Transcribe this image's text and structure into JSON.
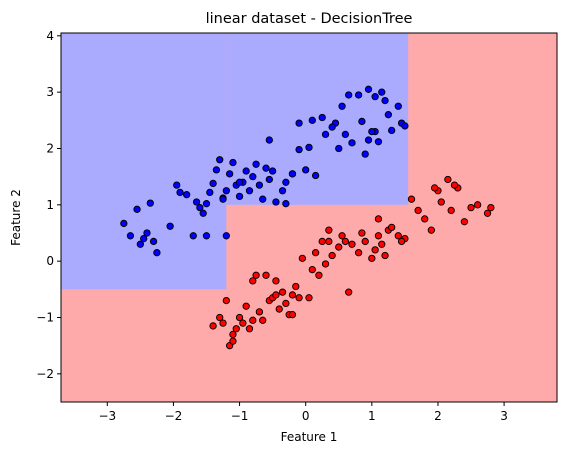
{
  "chart_data": {
    "type": "scatter",
    "title": "linear dataset - DecisionTree",
    "xlabel": "Feature 1",
    "ylabel": "Feature 2",
    "xlim": [
      -3.7,
      3.8
    ],
    "ylim": [
      -2.5,
      4.05
    ],
    "xticks": [
      -3,
      -2,
      -1,
      0,
      1,
      2,
      3
    ],
    "yticks": [
      -2,
      -1,
      0,
      1,
      2,
      3,
      4
    ],
    "grid": false,
    "colors": {
      "region_blue": "#aaaaff",
      "region_red": "#ffaaaa",
      "point_blue": "#0000ff",
      "point_red": "#ff0000",
      "point_edge": "#000000"
    },
    "decision_regions": [
      {
        "class": "blue",
        "x": [
          -3.7,
          -1.2
        ],
        "y": [
          -0.5,
          4.05
        ]
      },
      {
        "class": "blue",
        "x": [
          -1.2,
          1.55
        ],
        "y": [
          1.0,
          4.05
        ]
      }
    ],
    "series": [
      {
        "class": "blue",
        "points": [
          [
            -2.75,
            0.67
          ],
          [
            -2.65,
            0.45
          ],
          [
            -2.55,
            0.92
          ],
          [
            -2.5,
            0.3
          ],
          [
            -2.45,
            0.4
          ],
          [
            -2.4,
            0.5
          ],
          [
            -2.35,
            1.03
          ],
          [
            -2.3,
            0.35
          ],
          [
            -2.25,
            0.15
          ],
          [
            -2.05,
            0.62
          ],
          [
            -1.95,
            1.35
          ],
          [
            -1.9,
            1.22
          ],
          [
            -1.8,
            1.18
          ],
          [
            -1.7,
            0.45
          ],
          [
            -1.65,
            1.05
          ],
          [
            -1.6,
            0.95
          ],
          [
            -1.55,
            0.85
          ],
          [
            -1.5,
            0.45
          ],
          [
            -1.5,
            1.02
          ],
          [
            -1.45,
            1.22
          ],
          [
            -1.4,
            1.38
          ],
          [
            -1.35,
            1.62
          ],
          [
            -1.3,
            1.8
          ],
          [
            -1.25,
            1.12
          ],
          [
            -1.2,
            1.25
          ],
          [
            -1.15,
            1.55
          ],
          [
            -1.1,
            1.75
          ],
          [
            -1.05,
            1.35
          ],
          [
            -1.0,
            1.15
          ],
          [
            -0.95,
            1.4
          ],
          [
            -0.9,
            1.6
          ],
          [
            -0.85,
            1.25
          ],
          [
            -0.8,
            1.5
          ],
          [
            -0.75,
            1.72
          ],
          [
            -0.7,
            1.35
          ],
          [
            -0.65,
            1.1
          ],
          [
            -0.6,
            1.65
          ],
          [
            -0.55,
            1.45
          ],
          [
            -0.5,
            1.6
          ],
          [
            -0.45,
            1.05
          ],
          [
            -0.35,
            1.25
          ],
          [
            -0.3,
            1.4
          ],
          [
            -0.3,
            1.02
          ],
          [
            -0.2,
            1.55
          ],
          [
            -0.1,
            1.98
          ],
          [
            0.0,
            1.62
          ],
          [
            0.05,
            2.02
          ],
          [
            0.15,
            1.52
          ],
          [
            0.25,
            2.55
          ],
          [
            0.3,
            2.25
          ],
          [
            0.45,
            2.45
          ],
          [
            0.5,
            2.0
          ],
          [
            0.55,
            2.75
          ],
          [
            0.6,
            2.25
          ],
          [
            0.7,
            2.1
          ],
          [
            0.8,
            2.95
          ],
          [
            0.85,
            2.48
          ],
          [
            0.9,
            1.9
          ],
          [
            0.95,
            2.15
          ],
          [
            1.05,
            2.3
          ],
          [
            1.05,
            2.92
          ],
          [
            1.1,
            2.12
          ],
          [
            1.15,
            3.0
          ],
          [
            1.2,
            2.85
          ],
          [
            1.25,
            2.6
          ],
          [
            1.3,
            2.32
          ],
          [
            1.4,
            2.75
          ],
          [
            1.45,
            2.45
          ],
          [
            1.5,
            2.4
          ],
          [
            0.65,
            2.95
          ],
          [
            -0.2,
            1.55
          ],
          [
            -1.0,
            1.4
          ],
          [
            -1.25,
            1.1
          ],
          [
            -1.2,
            0.45
          ],
          [
            -0.1,
            2.45
          ],
          [
            0.1,
            2.5
          ],
          [
            0.4,
            2.38
          ],
          [
            0.95,
            3.05
          ],
          [
            -0.55,
            2.15
          ],
          [
            1.0,
            2.3
          ]
        ]
      },
      {
        "class": "red",
        "points": [
          [
            -1.4,
            -1.15
          ],
          [
            -1.3,
            -1.0
          ],
          [
            -1.25,
            -1.1
          ],
          [
            -1.2,
            -0.7
          ],
          [
            -1.15,
            -1.5
          ],
          [
            -1.1,
            -1.3
          ],
          [
            -1.05,
            -1.2
          ],
          [
            -1.0,
            -1.0
          ],
          [
            -0.95,
            -1.1
          ],
          [
            -0.9,
            -0.8
          ],
          [
            -0.85,
            -1.2
          ],
          [
            -0.8,
            -0.35
          ],
          [
            -0.75,
            -0.25
          ],
          [
            -0.7,
            -0.9
          ],
          [
            -0.65,
            -1.05
          ],
          [
            -0.6,
            -0.25
          ],
          [
            -0.55,
            -0.7
          ],
          [
            -0.5,
            -0.65
          ],
          [
            -0.45,
            -0.6
          ],
          [
            -0.4,
            -0.85
          ],
          [
            -0.35,
            -0.55
          ],
          [
            -0.3,
            -0.75
          ],
          [
            -0.25,
            -0.95
          ],
          [
            -0.2,
            -0.6
          ],
          [
            -0.15,
            -0.45
          ],
          [
            -0.1,
            -0.65
          ],
          [
            -0.05,
            0.05
          ],
          [
            0.05,
            -0.65
          ],
          [
            0.1,
            -0.15
          ],
          [
            0.15,
            0.15
          ],
          [
            0.2,
            -0.25
          ],
          [
            0.25,
            0.35
          ],
          [
            0.3,
            -0.05
          ],
          [
            0.35,
            0.55
          ],
          [
            0.4,
            0.1
          ],
          [
            0.5,
            0.25
          ],
          [
            0.55,
            0.45
          ],
          [
            0.65,
            -0.55
          ],
          [
            0.7,
            0.3
          ],
          [
            0.8,
            0.15
          ],
          [
            0.9,
            0.35
          ],
          [
            1.0,
            0.05
          ],
          [
            1.05,
            0.2
          ],
          [
            1.1,
            0.45
          ],
          [
            1.15,
            0.3
          ],
          [
            1.2,
            0.1
          ],
          [
            1.25,
            0.55
          ],
          [
            1.3,
            0.6
          ],
          [
            1.4,
            0.45
          ],
          [
            1.5,
            0.4
          ],
          [
            1.6,
            1.1
          ],
          [
            1.7,
            0.9
          ],
          [
            1.8,
            0.75
          ],
          [
            1.9,
            0.55
          ],
          [
            2.0,
            1.25
          ],
          [
            2.05,
            1.05
          ],
          [
            2.15,
            1.45
          ],
          [
            2.2,
            0.9
          ],
          [
            2.3,
            1.3
          ],
          [
            2.4,
            0.7
          ],
          [
            2.5,
            0.95
          ],
          [
            2.6,
            1.0
          ],
          [
            2.75,
            0.85
          ],
          [
            2.8,
            0.95
          ],
          [
            1.95,
            1.3
          ],
          [
            1.1,
            0.75
          ],
          [
            0.35,
            0.35
          ],
          [
            -0.45,
            -0.35
          ],
          [
            -1.1,
            -1.42
          ],
          [
            2.25,
            1.35
          ],
          [
            -0.2,
            -0.95
          ],
          [
            0.6,
            0.35
          ],
          [
            1.45,
            0.35
          ],
          [
            -0.8,
            -1.05
          ],
          [
            0.85,
            0.5
          ]
        ]
      }
    ]
  }
}
